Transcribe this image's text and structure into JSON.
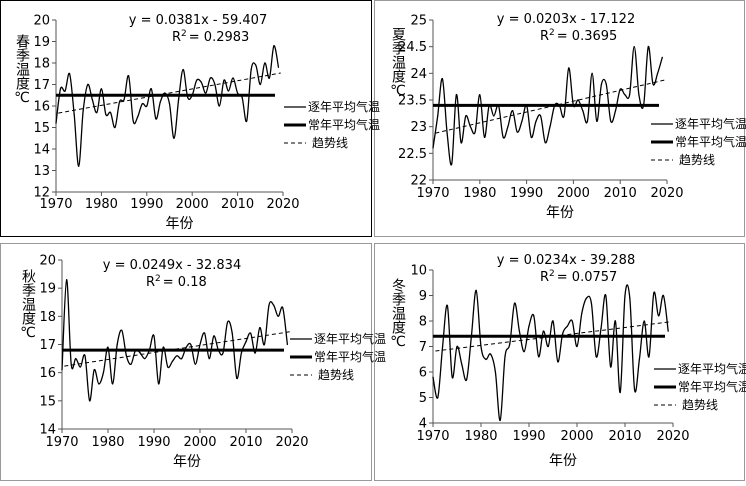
{
  "legend_labels": {
    "annual": "逐年平均气温",
    "normal": "常年平均气温",
    "trend": "趋势线"
  },
  "xlabel": "年份",
  "chart_data": [
    {
      "id": "spring",
      "type": "line",
      "ylabel": "春季温度℃",
      "equation": "y = 0.0381x - 59.407",
      "r2_value": "= 0.2983",
      "xlim": [
        1970,
        2020
      ],
      "ylim": [
        12,
        20
      ],
      "xticks": [
        "1970",
        "1980",
        "1990",
        "2000",
        "2010",
        "2020"
      ],
      "yticks": [
        "12",
        "13",
        "14",
        "15",
        "16",
        "17",
        "18",
        "19",
        "20"
      ],
      "x_start": 1970,
      "normal_value": 16.5,
      "trend": {
        "slope": 0.0381,
        "intercept": -59.407
      },
      "values": [
        15.2,
        16.8,
        16.7,
        17.5,
        15.6,
        13.2,
        15.8,
        17.0,
        16.3,
        15.7,
        16.8,
        15.6,
        15.7,
        15.0,
        16.2,
        16.3,
        17.4,
        15.3,
        15.5,
        16.1,
        16.0,
        16.8,
        15.4,
        16.2,
        16.6,
        16.1,
        14.5,
        16.3,
        17.7,
        16.4,
        16.5,
        17.2,
        17.1,
        16.6,
        17.3,
        17.0,
        16.0,
        17.2,
        16.7,
        17.3,
        16.6,
        16.4,
        15.3,
        17.7,
        17.9,
        17.0,
        18.0,
        17.3,
        18.8,
        17.8
      ]
    },
    {
      "id": "summer",
      "type": "line",
      "ylabel": "夏季温度℃",
      "equation": "y = 0.0203x - 17.122",
      "r2_value": "= 0.3695",
      "xlim": [
        1970,
        2020
      ],
      "ylim": [
        22,
        25
      ],
      "xticks": [
        "1970",
        "1980",
        "1990",
        "2000",
        "2010",
        "2020"
      ],
      "yticks": [
        "22",
        "22.5",
        "23",
        "23.5",
        "24",
        "24.5",
        "25"
      ],
      "x_start": 1970,
      "normal_value": 23.4,
      "trend": {
        "slope": 0.0203,
        "intercept": -17.122
      },
      "values": [
        22.6,
        23.2,
        23.9,
        22.9,
        22.3,
        23.6,
        22.7,
        23.2,
        23.0,
        22.9,
        23.6,
        22.8,
        23.4,
        23.2,
        23.4,
        22.8,
        23.0,
        23.3,
        22.9,
        23.1,
        23.4,
        22.8,
        23.1,
        23.2,
        22.7,
        23.0,
        23.4,
        23.4,
        23.2,
        24.1,
        23.4,
        23.5,
        23.3,
        23.1,
        24.0,
        23.1,
        23.8,
        23.8,
        23.1,
        23.3,
        23.7,
        23.6,
        23.6,
        24.5,
        23.6,
        23.4,
        24.5,
        23.8,
        24.0,
        24.3
      ]
    },
    {
      "id": "autumn",
      "type": "line",
      "ylabel": "秋季温度℃",
      "equation": "y = 0.0249x - 32.834",
      "r2_value": "= 0.18",
      "xlim": [
        1970,
        2020
      ],
      "ylim": [
        14,
        20
      ],
      "xticks": [
        "1970",
        "1980",
        "1990",
        "2000",
        "2010",
        "2020"
      ],
      "yticks": [
        "14",
        "15",
        "16",
        "17",
        "18",
        "19",
        "20"
      ],
      "x_start": 1970,
      "normal_value": 16.8,
      "trend": {
        "slope": 0.0249,
        "intercept": -32.834
      },
      "values": [
        16.1,
        19.3,
        16.3,
        16.5,
        16.2,
        16.6,
        15.0,
        16.1,
        15.6,
        16.0,
        16.9,
        15.6,
        17.0,
        17.5,
        16.6,
        16.3,
        16.8,
        16.7,
        16.5,
        16.8,
        17.3,
        15.6,
        16.9,
        16.2,
        16.4,
        16.6,
        16.5,
        16.9,
        17.0,
        16.3,
        17.0,
        17.4,
        16.5,
        17.3,
        16.8,
        16.7,
        17.8,
        17.4,
        15.8,
        16.7,
        17.1,
        17.4,
        16.7,
        17.6,
        17.0,
        18.4,
        18.4,
        18.0,
        18.3,
        17.0
      ]
    },
    {
      "id": "winter",
      "type": "line",
      "ylabel": "冬季温度℃",
      "equation": "y = 0.0234x - 39.288",
      "r2_value": "= 0.0757",
      "xlim": [
        1970,
        2020
      ],
      "ylim": [
        4,
        10
      ],
      "xticks": [
        "1970",
        "1980",
        "1990",
        "2000",
        "2010",
        "2020"
      ],
      "yticks": [
        "4",
        "5",
        "6",
        "7",
        "8",
        "9",
        "10"
      ],
      "x_start": 1970,
      "normal_value": 7.4,
      "trend": {
        "slope": 0.0234,
        "intercept": -39.288
      },
      "values": [
        5.8,
        5.0,
        7.0,
        8.6,
        5.8,
        7.0,
        6.3,
        5.7,
        7.4,
        9.2,
        7.0,
        6.5,
        6.7,
        6.0,
        4.1,
        6.6,
        7.1,
        8.7,
        7.6,
        6.8,
        7.8,
        8.2,
        6.6,
        7.6,
        7.0,
        8.0,
        6.4,
        7.5,
        7.8,
        8.0,
        7.0,
        8.3,
        8.9,
        8.7,
        6.6,
        7.7,
        9.0,
        6.2,
        8.0,
        5.2,
        9.0,
        8.9,
        5.3,
        6.5,
        8.0,
        6.6,
        9.1,
        8.2,
        9.0,
        7.6
      ]
    }
  ]
}
